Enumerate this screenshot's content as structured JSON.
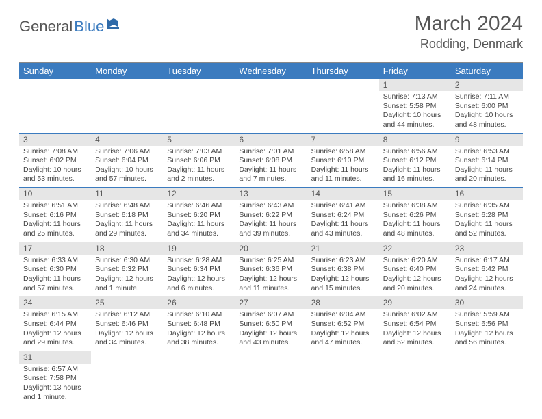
{
  "logo": {
    "part1": "General",
    "part2": "Blue"
  },
  "title": "March 2024",
  "location": "Rodding, Denmark",
  "colors": {
    "header_bg": "#3b7bbf",
    "daynum_bg": "#e6e6e6",
    "text_main": "#555555",
    "text_body": "#444444",
    "row_border": "#3b7bbf"
  },
  "dayNames": [
    "Sunday",
    "Monday",
    "Tuesday",
    "Wednesday",
    "Thursday",
    "Friday",
    "Saturday"
  ],
  "weeks": [
    [
      {
        "empty": true
      },
      {
        "empty": true
      },
      {
        "empty": true
      },
      {
        "empty": true
      },
      {
        "empty": true
      },
      {
        "n": "1",
        "sr": "Sunrise: 7:13 AM",
        "ss": "Sunset: 5:58 PM",
        "dl": "Daylight: 10 hours and 44 minutes."
      },
      {
        "n": "2",
        "sr": "Sunrise: 7:11 AM",
        "ss": "Sunset: 6:00 PM",
        "dl": "Daylight: 10 hours and 48 minutes."
      }
    ],
    [
      {
        "n": "3",
        "sr": "Sunrise: 7:08 AM",
        "ss": "Sunset: 6:02 PM",
        "dl": "Daylight: 10 hours and 53 minutes."
      },
      {
        "n": "4",
        "sr": "Sunrise: 7:06 AM",
        "ss": "Sunset: 6:04 PM",
        "dl": "Daylight: 10 hours and 57 minutes."
      },
      {
        "n": "5",
        "sr": "Sunrise: 7:03 AM",
        "ss": "Sunset: 6:06 PM",
        "dl": "Daylight: 11 hours and 2 minutes."
      },
      {
        "n": "6",
        "sr": "Sunrise: 7:01 AM",
        "ss": "Sunset: 6:08 PM",
        "dl": "Daylight: 11 hours and 7 minutes."
      },
      {
        "n": "7",
        "sr": "Sunrise: 6:58 AM",
        "ss": "Sunset: 6:10 PM",
        "dl": "Daylight: 11 hours and 11 minutes."
      },
      {
        "n": "8",
        "sr": "Sunrise: 6:56 AM",
        "ss": "Sunset: 6:12 PM",
        "dl": "Daylight: 11 hours and 16 minutes."
      },
      {
        "n": "9",
        "sr": "Sunrise: 6:53 AM",
        "ss": "Sunset: 6:14 PM",
        "dl": "Daylight: 11 hours and 20 minutes."
      }
    ],
    [
      {
        "n": "10",
        "sr": "Sunrise: 6:51 AM",
        "ss": "Sunset: 6:16 PM",
        "dl": "Daylight: 11 hours and 25 minutes."
      },
      {
        "n": "11",
        "sr": "Sunrise: 6:48 AM",
        "ss": "Sunset: 6:18 PM",
        "dl": "Daylight: 11 hours and 29 minutes."
      },
      {
        "n": "12",
        "sr": "Sunrise: 6:46 AM",
        "ss": "Sunset: 6:20 PM",
        "dl": "Daylight: 11 hours and 34 minutes."
      },
      {
        "n": "13",
        "sr": "Sunrise: 6:43 AM",
        "ss": "Sunset: 6:22 PM",
        "dl": "Daylight: 11 hours and 39 minutes."
      },
      {
        "n": "14",
        "sr": "Sunrise: 6:41 AM",
        "ss": "Sunset: 6:24 PM",
        "dl": "Daylight: 11 hours and 43 minutes."
      },
      {
        "n": "15",
        "sr": "Sunrise: 6:38 AM",
        "ss": "Sunset: 6:26 PM",
        "dl": "Daylight: 11 hours and 48 minutes."
      },
      {
        "n": "16",
        "sr": "Sunrise: 6:35 AM",
        "ss": "Sunset: 6:28 PM",
        "dl": "Daylight: 11 hours and 52 minutes."
      }
    ],
    [
      {
        "n": "17",
        "sr": "Sunrise: 6:33 AM",
        "ss": "Sunset: 6:30 PM",
        "dl": "Daylight: 11 hours and 57 minutes."
      },
      {
        "n": "18",
        "sr": "Sunrise: 6:30 AM",
        "ss": "Sunset: 6:32 PM",
        "dl": "Daylight: 12 hours and 1 minute."
      },
      {
        "n": "19",
        "sr": "Sunrise: 6:28 AM",
        "ss": "Sunset: 6:34 PM",
        "dl": "Daylight: 12 hours and 6 minutes."
      },
      {
        "n": "20",
        "sr": "Sunrise: 6:25 AM",
        "ss": "Sunset: 6:36 PM",
        "dl": "Daylight: 12 hours and 11 minutes."
      },
      {
        "n": "21",
        "sr": "Sunrise: 6:23 AM",
        "ss": "Sunset: 6:38 PM",
        "dl": "Daylight: 12 hours and 15 minutes."
      },
      {
        "n": "22",
        "sr": "Sunrise: 6:20 AM",
        "ss": "Sunset: 6:40 PM",
        "dl": "Daylight: 12 hours and 20 minutes."
      },
      {
        "n": "23",
        "sr": "Sunrise: 6:17 AM",
        "ss": "Sunset: 6:42 PM",
        "dl": "Daylight: 12 hours and 24 minutes."
      }
    ],
    [
      {
        "n": "24",
        "sr": "Sunrise: 6:15 AM",
        "ss": "Sunset: 6:44 PM",
        "dl": "Daylight: 12 hours and 29 minutes."
      },
      {
        "n": "25",
        "sr": "Sunrise: 6:12 AM",
        "ss": "Sunset: 6:46 PM",
        "dl": "Daylight: 12 hours and 34 minutes."
      },
      {
        "n": "26",
        "sr": "Sunrise: 6:10 AM",
        "ss": "Sunset: 6:48 PM",
        "dl": "Daylight: 12 hours and 38 minutes."
      },
      {
        "n": "27",
        "sr": "Sunrise: 6:07 AM",
        "ss": "Sunset: 6:50 PM",
        "dl": "Daylight: 12 hours and 43 minutes."
      },
      {
        "n": "28",
        "sr": "Sunrise: 6:04 AM",
        "ss": "Sunset: 6:52 PM",
        "dl": "Daylight: 12 hours and 47 minutes."
      },
      {
        "n": "29",
        "sr": "Sunrise: 6:02 AM",
        "ss": "Sunset: 6:54 PM",
        "dl": "Daylight: 12 hours and 52 minutes."
      },
      {
        "n": "30",
        "sr": "Sunrise: 5:59 AM",
        "ss": "Sunset: 6:56 PM",
        "dl": "Daylight: 12 hours and 56 minutes."
      }
    ],
    [
      {
        "n": "31",
        "sr": "Sunrise: 6:57 AM",
        "ss": "Sunset: 7:58 PM",
        "dl": "Daylight: 13 hours and 1 minute."
      },
      {
        "empty": true
      },
      {
        "empty": true
      },
      {
        "empty": true
      },
      {
        "empty": true
      },
      {
        "empty": true
      },
      {
        "empty": true
      }
    ]
  ]
}
